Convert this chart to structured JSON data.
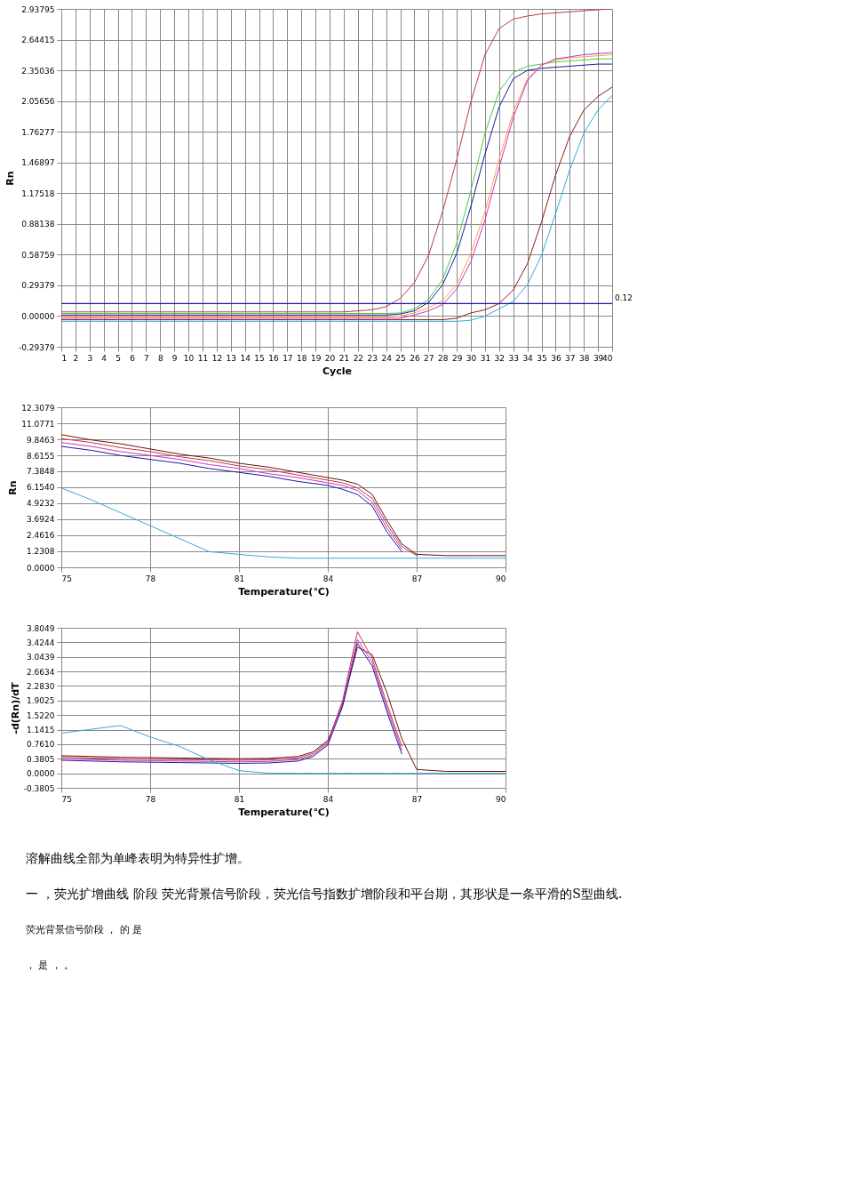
{
  "chart_data": [
    {
      "type": "line",
      "xlabel": "Cycle",
      "ylabel": "Rn",
      "grid": true,
      "legend": false,
      "marker": "none",
      "line_style": "solid",
      "x": [
        1,
        2,
        3,
        4,
        5,
        6,
        7,
        8,
        9,
        10,
        11,
        12,
        13,
        14,
        15,
        16,
        17,
        18,
        19,
        20,
        21,
        22,
        23,
        24,
        25,
        26,
        27,
        28,
        29,
        30,
        31,
        32,
        33,
        34,
        35,
        36,
        37,
        38,
        39,
        40
      ],
      "xlim": [
        1,
        40
      ],
      "xticks": [
        1,
        2,
        3,
        4,
        5,
        6,
        7,
        8,
        9,
        10,
        11,
        12,
        13,
        14,
        15,
        16,
        17,
        18,
        19,
        20,
        21,
        22,
        23,
        24,
        25,
        26,
        27,
        28,
        29,
        30,
        31,
        32,
        33,
        34,
        35,
        36,
        37,
        38,
        39,
        40
      ],
      "ylim": [
        -0.29379,
        2.93795
      ],
      "yticks": [
        {
          "value": -0.29379,
          "label": "-0.29379"
        },
        {
          "value": 0,
          "label": "0.00000"
        },
        0.29379,
        0.58759,
        0.88138,
        1.17518,
        1.46897,
        1.76277,
        2.05656,
        2.35036,
        2.64415,
        2.93795
      ],
      "ref_lines": [
        {
          "axis": "y",
          "value": 0.12,
          "label": "0.12",
          "color": "#1a1aa0"
        }
      ],
      "series": [
        {
          "color": "#c0393b",
          "values": [
            0.04,
            0.04,
            0.04,
            0.04,
            0.04,
            0.04,
            0.04,
            0.04,
            0.04,
            0.04,
            0.04,
            0.04,
            0.04,
            0.04,
            0.04,
            0.04,
            0.04,
            0.04,
            0.04,
            0.04,
            0.04,
            0.05,
            0.06,
            0.09,
            0.17,
            0.32,
            0.58,
            1.0,
            1.5,
            2.05,
            2.5,
            2.75,
            2.84,
            2.87,
            2.89,
            2.9,
            2.91,
            2.92,
            2.93,
            2.937
          ]
        },
        {
          "color": "#44cc44",
          "values": [
            0.025,
            0.025,
            0.025,
            0.025,
            0.025,
            0.025,
            0.025,
            0.025,
            0.025,
            0.025,
            0.025,
            0.025,
            0.025,
            0.025,
            0.025,
            0.025,
            0.025,
            0.025,
            0.025,
            0.025,
            0.025,
            0.025,
            0.025,
            0.025,
            0.03,
            0.07,
            0.16,
            0.35,
            0.7,
            1.2,
            1.75,
            2.15,
            2.33,
            2.39,
            2.41,
            2.43,
            2.44,
            2.45,
            2.46,
            2.46
          ]
        },
        {
          "color": "#1a1aa0",
          "values": [
            0.01,
            0.01,
            0.01,
            0.01,
            0.01,
            0.01,
            0.01,
            0.01,
            0.01,
            0.01,
            0.01,
            0.01,
            0.01,
            0.01,
            0.01,
            0.01,
            0.01,
            0.01,
            0.01,
            0.01,
            0.01,
            0.01,
            0.01,
            0.01,
            0.02,
            0.05,
            0.13,
            0.3,
            0.6,
            1.05,
            1.55,
            2.0,
            2.27,
            2.35,
            2.37,
            2.38,
            2.39,
            2.4,
            2.41,
            2.41
          ]
        },
        {
          "color": "#ffa040",
          "values": [
            -0.005,
            -0.005,
            -0.005,
            -0.005,
            -0.005,
            -0.005,
            -0.005,
            -0.005,
            -0.005,
            -0.005,
            -0.005,
            -0.005,
            -0.005,
            -0.005,
            -0.005,
            -0.005,
            -0.005,
            -0.005,
            -0.005,
            -0.005,
            -0.005,
            -0.005,
            -0.005,
            -0.005,
            0.0,
            0.03,
            0.08,
            0.15,
            0.3,
            0.6,
            1.0,
            1.5,
            1.95,
            2.27,
            2.4,
            2.45,
            2.47,
            2.48,
            2.49,
            2.5
          ]
        },
        {
          "color": "#cc33cc",
          "values": [
            -0.02,
            -0.02,
            -0.02,
            -0.02,
            -0.02,
            -0.02,
            -0.02,
            -0.02,
            -0.02,
            -0.02,
            -0.02,
            -0.02,
            -0.02,
            -0.02,
            -0.02,
            -0.02,
            -0.02,
            -0.02,
            -0.02,
            -0.02,
            -0.02,
            -0.02,
            -0.02,
            -0.02,
            -0.02,
            0.01,
            0.05,
            0.11,
            0.26,
            0.52,
            0.92,
            1.42,
            1.9,
            2.25,
            2.4,
            2.46,
            2.48,
            2.5,
            2.51,
            2.52
          ]
        },
        {
          "color": "#8b1a1a",
          "values": [
            -0.035,
            -0.035,
            -0.035,
            -0.035,
            -0.035,
            -0.035,
            -0.035,
            -0.035,
            -0.035,
            -0.035,
            -0.035,
            -0.035,
            -0.035,
            -0.035,
            -0.035,
            -0.035,
            -0.035,
            -0.035,
            -0.035,
            -0.035,
            -0.035,
            -0.035,
            -0.035,
            -0.035,
            -0.035,
            -0.035,
            -0.035,
            -0.035,
            -0.02,
            0.03,
            0.06,
            0.12,
            0.25,
            0.5,
            0.9,
            1.35,
            1.72,
            1.97,
            2.1,
            2.19
          ]
        },
        {
          "color": "#33aadd",
          "values": [
            -0.05,
            -0.05,
            -0.05,
            -0.05,
            -0.05,
            -0.05,
            -0.05,
            -0.05,
            -0.05,
            -0.05,
            -0.05,
            -0.05,
            -0.05,
            -0.05,
            -0.05,
            -0.05,
            -0.05,
            -0.05,
            -0.05,
            -0.05,
            -0.05,
            -0.05,
            -0.05,
            -0.05,
            -0.05,
            -0.05,
            -0.05,
            -0.05,
            -0.05,
            -0.04,
            0.0,
            0.07,
            0.14,
            0.3,
            0.58,
            0.98,
            1.4,
            1.75,
            1.97,
            2.11
          ]
        }
      ]
    },
    {
      "type": "line",
      "xlabel": "Temperature(℃)",
      "ylabel": "Rn",
      "grid": true,
      "legend": false,
      "marker": "none",
      "line_style": "solid",
      "x": [
        75,
        76,
        77,
        78,
        79,
        80,
        81,
        82,
        83,
        84,
        84.5,
        85,
        85.5,
        86,
        86.5,
        87,
        88,
        89,
        90
      ],
      "xlim": [
        75,
        90
      ],
      "xticks": [
        75,
        78,
        81,
        84,
        87,
        90
      ],
      "ylim": [
        0,
        12.3079
      ],
      "yticks": [
        {
          "value": 0,
          "label": "0.0000"
        },
        1.2308,
        2.4616,
        3.6924,
        4.9232,
        {
          "value": 6.154,
          "label": "6.1540"
        },
        7.3848,
        8.6155,
        9.8463,
        11.0771,
        12.3079
      ],
      "series": [
        {
          "color": "#6b1010",
          "values": [
            10.2,
            9.8,
            9.5,
            9.1,
            8.7,
            8.4,
            8.0,
            7.7,
            7.3,
            6.9,
            6.7,
            6.4,
            5.6,
            3.6,
            1.8,
            1.0,
            0.9,
            0.9,
            0.9
          ]
        },
        {
          "color": "#c0393b",
          "values": [
            9.9,
            9.6,
            9.2,
            8.9,
            8.5,
            8.2,
            7.8,
            7.5,
            7.1,
            6.7,
            6.5,
            6.1,
            5.3,
            3.3,
            1.6,
            0.9,
            null,
            null,
            null
          ]
        },
        {
          "color": "#cc33cc",
          "values": [
            9.6,
            9.3,
            8.9,
            8.6,
            8.3,
            7.9,
            7.6,
            7.2,
            6.9,
            6.5,
            6.3,
            5.9,
            5.0,
            3.0,
            1.4,
            null,
            null,
            null,
            null
          ]
        },
        {
          "color": "#1a1aa0",
          "values": [
            9.3,
            9.0,
            8.6,
            8.3,
            8.0,
            7.6,
            7.3,
            7.0,
            6.6,
            6.3,
            6.0,
            5.6,
            4.7,
            2.7,
            1.2,
            null,
            null,
            null,
            null
          ]
        },
        {
          "color": "#33aadd",
          "values": [
            6.1,
            5.2,
            4.2,
            3.2,
            2.2,
            1.2,
            1.0,
            0.8,
            0.7,
            0.7,
            0.7,
            0.7,
            0.7,
            0.7,
            0.7,
            0.7,
            0.7,
            0.7,
            0.7
          ]
        }
      ]
    },
    {
      "type": "line",
      "xlabel": "Temperature(℃)",
      "ylabel": "-d(Rn)/dT",
      "grid": true,
      "legend": false,
      "marker": "none",
      "line_style": "solid",
      "x": [
        75,
        76,
        77,
        78,
        79,
        80,
        81,
        82,
        83,
        83.5,
        84,
        84.5,
        85,
        85.5,
        86,
        86.5,
        87,
        88,
        90
      ],
      "xlim": [
        75,
        90
      ],
      "xticks": [
        75,
        78,
        81,
        84,
        87,
        90
      ],
      "ylim": [
        -0.3805,
        3.8049
      ],
      "yticks": [
        -0.3805,
        {
          "value": 0,
          "label": "0.0000"
        },
        0.3805,
        {
          "value": 0.761,
          "label": "0.7610"
        },
        1.1415,
        {
          "value": 1.522,
          "label": "1.5220"
        },
        1.9025,
        {
          "value": 2.283,
          "label": "2.2830"
        },
        2.6634,
        3.0439,
        3.4244,
        3.8049
      ],
      "series": [
        {
          "color": "#6b1010",
          "values": [
            0.46,
            0.44,
            0.42,
            0.41,
            0.4,
            0.39,
            0.38,
            0.39,
            0.44,
            0.56,
            0.86,
            1.8,
            3.3,
            3.1,
            2.1,
            0.9,
            0.1,
            0.05,
            0.05
          ]
        },
        {
          "color": "#c0393b",
          "values": [
            0.42,
            0.4,
            0.38,
            0.37,
            0.36,
            0.35,
            0.34,
            0.35,
            0.4,
            0.52,
            0.82,
            1.9,
            3.7,
            3.0,
            1.8,
            0.7,
            null,
            null,
            null
          ]
        },
        {
          "color": "#cc33cc",
          "values": [
            0.38,
            0.36,
            0.34,
            0.33,
            0.32,
            0.31,
            0.3,
            0.31,
            0.36,
            0.48,
            0.78,
            1.85,
            3.5,
            2.9,
            1.7,
            0.6,
            null,
            null,
            null
          ]
        },
        {
          "color": "#1a1aa0",
          "values": [
            0.34,
            0.32,
            0.3,
            0.29,
            0.28,
            0.27,
            0.26,
            0.27,
            0.32,
            0.44,
            0.74,
            1.75,
            3.4,
            2.8,
            1.6,
            0.5,
            null,
            null,
            null
          ]
        },
        {
          "color": "#33aadd",
          "values": [
            1.05,
            1.15,
            1.25,
            0.95,
            0.7,
            0.35,
            0.07,
            0.0,
            0.0,
            0.0,
            0.0,
            0.0,
            0.0,
            0.0,
            0.0,
            0.0,
            0.0,
            0.0,
            0.0
          ]
        }
      ],
      "annotations": [
        "溶解曲线全部为单峰表明为特异性扩增。",
        "一 ，荧光扩增曲线 阶段 荧光背景信号阶段，荧光信号指数扩增阶段和平台期，其形状是一条平滑的S型曲线.",
        "荧光背景信号阶段 ， 的 是",
        "， 是 ， 。"
      ]
    }
  ]
}
